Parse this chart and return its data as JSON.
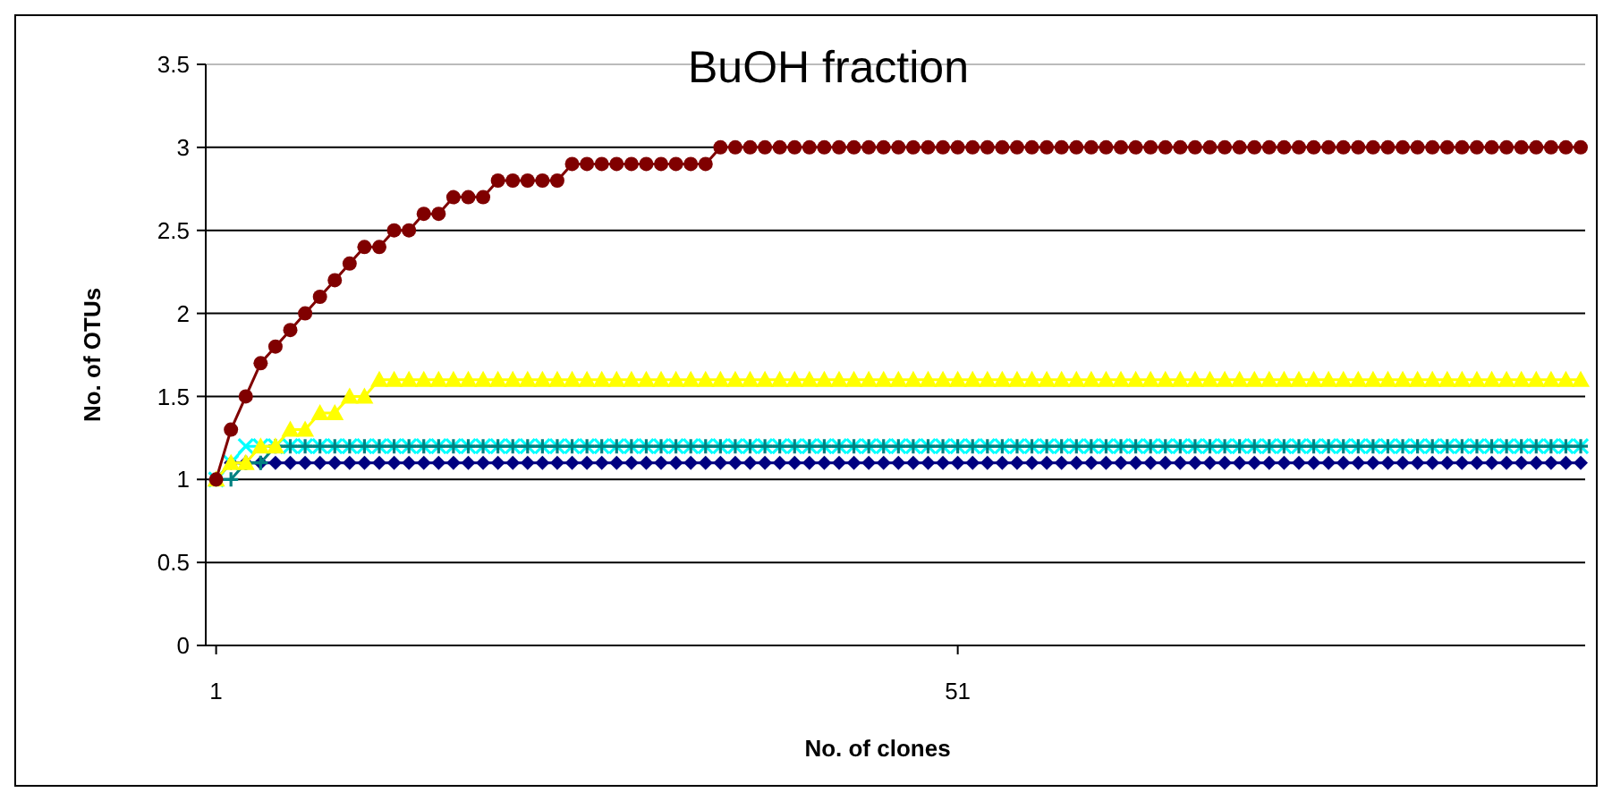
{
  "chart_data": {
    "type": "line",
    "title": "BuOH fraction",
    "xlabel": "No. of clones",
    "ylabel": "No. of OTUs",
    "x": [
      1,
      2,
      3,
      4,
      5,
      6,
      7,
      8,
      9,
      10,
      11,
      12,
      13,
      14,
      15,
      16,
      17,
      18,
      19,
      20,
      21,
      22,
      23,
      24,
      25,
      26,
      27,
      28,
      29,
      30,
      31,
      32,
      33,
      34,
      35,
      36,
      37,
      38,
      39,
      40,
      41,
      42,
      43,
      44,
      45,
      46,
      47,
      48,
      49,
      50,
      51,
      52,
      53,
      54,
      55,
      56,
      57,
      58,
      59,
      60,
      61,
      62,
      63,
      64,
      65,
      66,
      67,
      68,
      69,
      70,
      71,
      72,
      73,
      74,
      75,
      76,
      77,
      78,
      79,
      80,
      81,
      82,
      83,
      84,
      85,
      86,
      87,
      88,
      89,
      90,
      91,
      92,
      93
    ],
    "xlim": [
      0.3,
      93.3
    ],
    "xticks": [
      1,
      51
    ],
    "ylim": [
      0,
      3.5
    ],
    "yticks": [
      0,
      0.5,
      1,
      1.5,
      2,
      2.5,
      3,
      3.5
    ],
    "grid": "y",
    "series": [
      {
        "color": "#000080",
        "marker": "diamond",
        "values": [
          1,
          1.1,
          1.1,
          1.1,
          1.1,
          1.1,
          1.1,
          1.1,
          1.1,
          1.1,
          1.1,
          1.1,
          1.1,
          1.1,
          1.1,
          1.1,
          1.1,
          1.1,
          1.1,
          1.1,
          1.1,
          1.1,
          1.1,
          1.1,
          1.1,
          1.1,
          1.1,
          1.1,
          1.1,
          1.1,
          1.1,
          1.1,
          1.1,
          1.1,
          1.1,
          1.1,
          1.1,
          1.1,
          1.1,
          1.1,
          1.1,
          1.1,
          1.1,
          1.1,
          1.1,
          1.1,
          1.1,
          1.1,
          1.1,
          1.1,
          1.1,
          1.1,
          1.1,
          1.1,
          1.1,
          1.1,
          1.1,
          1.1,
          1.1,
          1.1,
          1.1,
          1.1,
          1.1,
          1.1,
          1.1,
          1.1,
          1.1,
          1.1,
          1.1,
          1.1,
          1.1,
          1.1,
          1.1,
          1.1,
          1.1,
          1.1,
          1.1,
          1.1,
          1.1,
          1.1,
          1.1,
          1.1,
          1.1,
          1.1,
          1.1,
          1.1,
          1.1,
          1.1,
          1.1,
          1.1,
          1.1,
          1.1,
          1.1
        ]
      },
      {
        "color": "#00ffff",
        "marker": "cross",
        "values": [
          1,
          1.1,
          1.2,
          1.2,
          1.2,
          1.2,
          1.2,
          1.2,
          1.2,
          1.2,
          1.2,
          1.2,
          1.2,
          1.2,
          1.2,
          1.2,
          1.2,
          1.2,
          1.2,
          1.2,
          1.2,
          1.2,
          1.2,
          1.2,
          1.2,
          1.2,
          1.2,
          1.2,
          1.2,
          1.2,
          1.2,
          1.2,
          1.2,
          1.2,
          1.2,
          1.2,
          1.2,
          1.2,
          1.2,
          1.2,
          1.2,
          1.2,
          1.2,
          1.2,
          1.2,
          1.2,
          1.2,
          1.2,
          1.2,
          1.2,
          1.2,
          1.2,
          1.2,
          1.2,
          1.2,
          1.2,
          1.2,
          1.2,
          1.2,
          1.2,
          1.2,
          1.2,
          1.2,
          1.2,
          1.2,
          1.2,
          1.2,
          1.2,
          1.2,
          1.2,
          1.2,
          1.2,
          1.2,
          1.2,
          1.2,
          1.2,
          1.2,
          1.2,
          1.2,
          1.2,
          1.2,
          1.2,
          1.2,
          1.2,
          1.2,
          1.2,
          1.2,
          1.2,
          1.2,
          1.2,
          1.2,
          1.2,
          1.2
        ]
      },
      {
        "color": "#008080",
        "marker": "plus",
        "values": [
          1,
          1,
          1.1,
          1.1,
          1.2,
          1.2,
          1.2,
          1.2,
          1.2,
          1.2,
          1.2,
          1.2,
          1.2,
          1.2,
          1.2,
          1.2,
          1.2,
          1.2,
          1.2,
          1.2,
          1.2,
          1.2,
          1.2,
          1.2,
          1.2,
          1.2,
          1.2,
          1.2,
          1.2,
          1.2,
          1.2,
          1.2,
          1.2,
          1.2,
          1.2,
          1.2,
          1.2,
          1.2,
          1.2,
          1.2,
          1.2,
          1.2,
          1.2,
          1.2,
          1.2,
          1.2,
          1.2,
          1.2,
          1.2,
          1.2,
          1.2,
          1.2,
          1.2,
          1.2,
          1.2,
          1.2,
          1.2,
          1.2,
          1.2,
          1.2,
          1.2,
          1.2,
          1.2,
          1.2,
          1.2,
          1.2,
          1.2,
          1.2,
          1.2,
          1.2,
          1.2,
          1.2,
          1.2,
          1.2,
          1.2,
          1.2,
          1.2,
          1.2,
          1.2,
          1.2,
          1.2,
          1.2,
          1.2,
          1.2,
          1.2,
          1.2,
          1.2,
          1.2,
          1.2,
          1.2,
          1.2,
          1.2,
          1.2
        ]
      },
      {
        "color": "#ffff00",
        "marker": "triangle",
        "values": [
          1,
          1.1,
          1.1,
          1.2,
          1.2,
          1.3,
          1.3,
          1.4,
          1.4,
          1.5,
          1.5,
          1.6,
          1.6,
          1.6,
          1.6,
          1.6,
          1.6,
          1.6,
          1.6,
          1.6,
          1.6,
          1.6,
          1.6,
          1.6,
          1.6,
          1.6,
          1.6,
          1.6,
          1.6,
          1.6,
          1.6,
          1.6,
          1.6,
          1.6,
          1.6,
          1.6,
          1.6,
          1.6,
          1.6,
          1.6,
          1.6,
          1.6,
          1.6,
          1.6,
          1.6,
          1.6,
          1.6,
          1.6,
          1.6,
          1.6,
          1.6,
          1.6,
          1.6,
          1.6,
          1.6,
          1.6,
          1.6,
          1.6,
          1.6,
          1.6,
          1.6,
          1.6,
          1.6,
          1.6,
          1.6,
          1.6,
          1.6,
          1.6,
          1.6,
          1.6,
          1.6,
          1.6,
          1.6,
          1.6,
          1.6,
          1.6,
          1.6,
          1.6,
          1.6,
          1.6,
          1.6,
          1.6,
          1.6,
          1.6,
          1.6,
          1.6,
          1.6,
          1.6,
          1.6,
          1.6,
          1.6,
          1.6,
          1.6
        ]
      },
      {
        "color": "#800000",
        "marker": "circle",
        "values": [
          1,
          1.3,
          1.5,
          1.7,
          1.8,
          1.9,
          2,
          2.1,
          2.2,
          2.3,
          2.4,
          2.4,
          2.5,
          2.5,
          2.6,
          2.6,
          2.7,
          2.7,
          2.7,
          2.8,
          2.8,
          2.8,
          2.8,
          2.8,
          2.9,
          2.9,
          2.9,
          2.9,
          2.9,
          2.9,
          2.9,
          2.9,
          2.9,
          2.9,
          3,
          3,
          3,
          3,
          3,
          3,
          3,
          3,
          3,
          3,
          3,
          3,
          3,
          3,
          3,
          3,
          3,
          3,
          3,
          3,
          3,
          3,
          3,
          3,
          3,
          3,
          3,
          3,
          3,
          3,
          3,
          3,
          3,
          3,
          3,
          3,
          3,
          3,
          3,
          3,
          3,
          3,
          3,
          3,
          3,
          3,
          3,
          3,
          3,
          3,
          3,
          3,
          3,
          3,
          3,
          3,
          3,
          3,
          3
        ]
      }
    ]
  }
}
